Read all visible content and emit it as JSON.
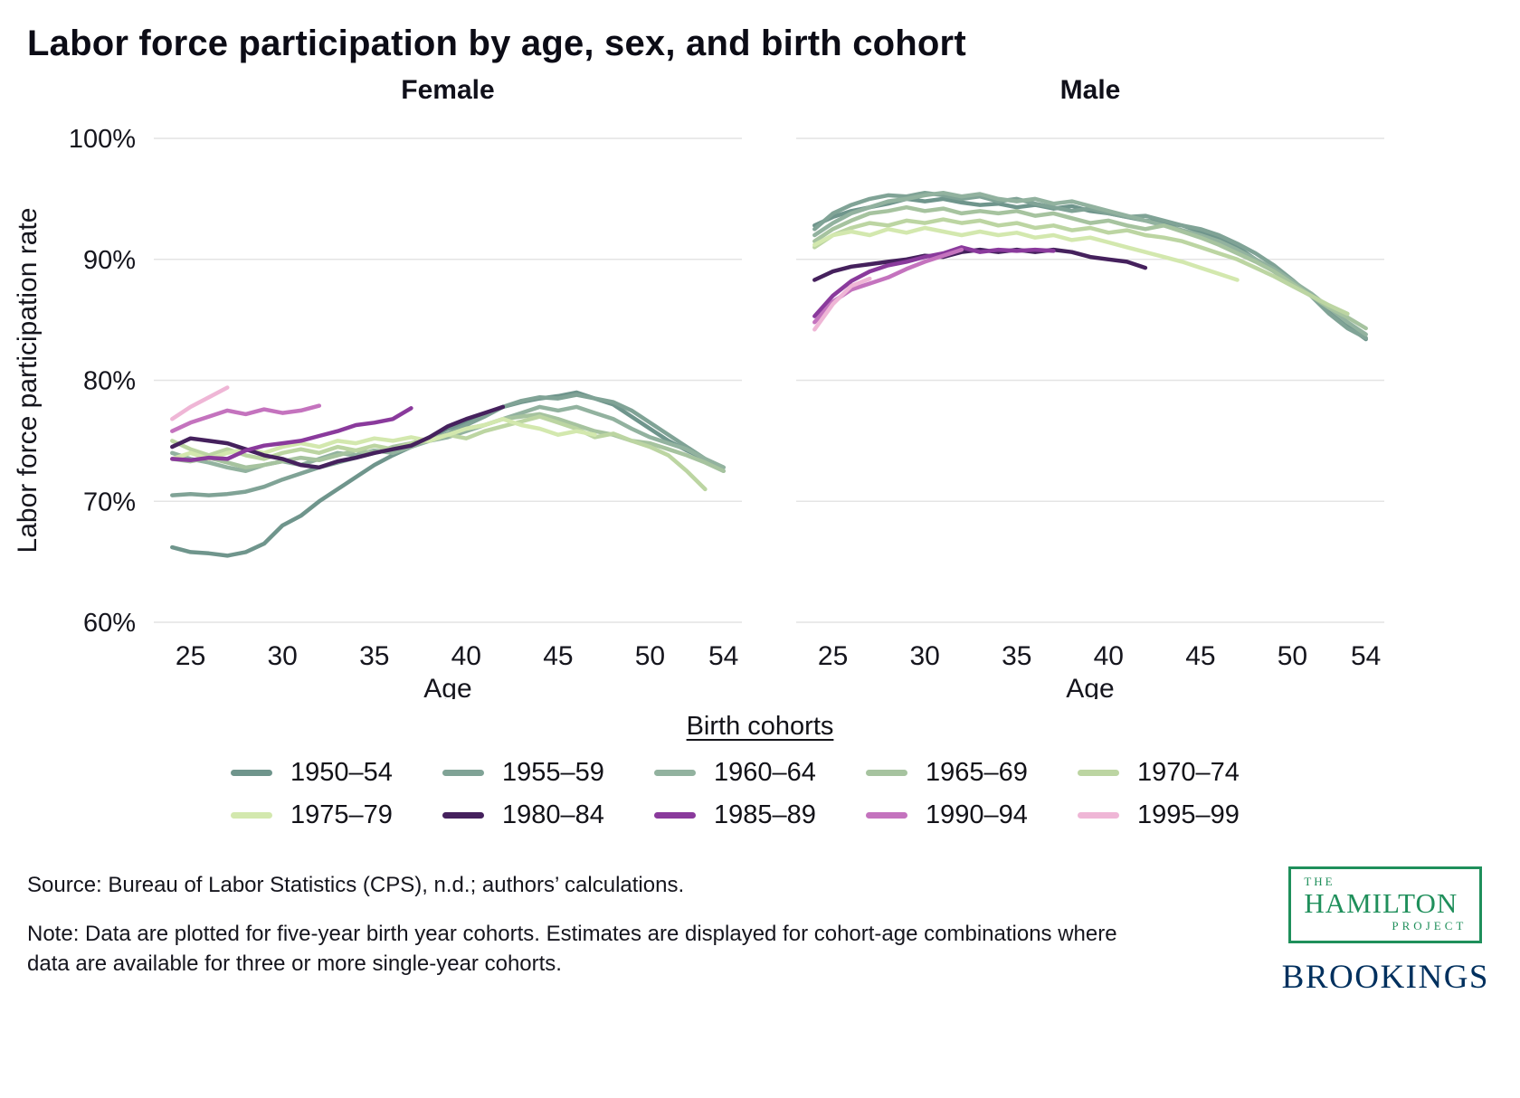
{
  "title": "Labor force participation by age, sex, and birth cohort",
  "y_axis_title": "Labor force participation rate",
  "x_axis_title": "Age",
  "panels": [
    {
      "key": "female",
      "label": "Female"
    },
    {
      "key": "male",
      "label": "Male"
    }
  ],
  "legend_title": "Birth cohorts",
  "source": "Source: Bureau of Labor Statistics (CPS), n.d.; authors’ calculations.",
  "note": "Note: Data are plotted for five-year birth year cohorts. Estimates are displayed for cohort-age combinations where data are available for three or more single-year cohorts.",
  "logos": {
    "hamilton": {
      "the": "THE",
      "name": "HAMILTON",
      "project": "PROJECT"
    },
    "brookings": "BROOKINGS"
  },
  "chart_data": {
    "type": "line",
    "grid": true,
    "legend_position": "bottom",
    "x_range": [
      23,
      55
    ],
    "y_range": [
      58,
      101
    ],
    "x_ticks": [
      25,
      30,
      35,
      40,
      45,
      50,
      54
    ],
    "y_ticks": [
      60,
      70,
      80,
      90,
      100
    ],
    "y_tick_labels": [
      "60%",
      "70%",
      "80%",
      "90%",
      "100%"
    ],
    "grid_color": "#e4e4e4",
    "series": [
      {
        "label": "1950–54",
        "color": "#6f958c",
        "female": {
          "start_age": 24,
          "values": [
            66.2,
            65.8,
            65.7,
            65.5,
            65.8,
            66.5,
            68.0,
            68.8,
            70.0,
            71.0,
            72.0,
            73.0,
            73.8,
            74.5,
            75.3,
            76.0,
            76.5,
            77.2,
            77.8,
            78.2,
            78.5,
            78.7,
            79.0,
            78.5,
            78.0,
            77.0,
            76.0,
            75.0,
            74.2,
            73.5,
            72.8
          ]
        },
        "male": {
          "start_age": 24,
          "values": [
            92.8,
            93.5,
            94.0,
            94.3,
            94.6,
            95.0,
            94.8,
            95.0,
            94.7,
            94.5,
            94.6,
            94.3,
            94.5,
            94.2,
            94.4,
            94.0,
            93.8,
            93.5,
            93.2,
            93.0,
            92.8,
            92.3,
            91.8,
            91.0,
            90.0,
            89.0,
            88.0,
            87.0,
            85.8,
            84.5,
            83.4
          ]
        }
      },
      {
        "label": "1955–59",
        "color": "#80a396",
        "female": {
          "start_age": 24,
          "values": [
            70.5,
            70.6,
            70.5,
            70.6,
            70.8,
            71.2,
            71.8,
            72.3,
            72.8,
            73.2,
            73.6,
            74.0,
            74.3,
            74.6,
            75.0,
            75.6,
            76.3,
            77.0,
            77.8,
            78.3,
            78.6,
            78.5,
            78.8,
            78.5,
            78.2,
            77.5,
            76.5,
            75.5,
            74.5,
            73.5,
            72.5
          ]
        },
        "male": {
          "start_age": 24,
          "values": [
            92.5,
            93.8,
            94.5,
            95.0,
            95.3,
            95.2,
            95.5,
            95.3,
            95.0,
            95.2,
            94.8,
            95.0,
            94.6,
            94.3,
            94.0,
            94.2,
            93.8,
            93.5,
            93.6,
            93.2,
            92.8,
            92.5,
            92.0,
            91.3,
            90.5,
            89.5,
            88.3,
            87.0,
            85.5,
            84.3,
            83.5
          ]
        }
      },
      {
        "label": "1960–64",
        "color": "#92b29f",
        "female": {
          "start_age": 24,
          "values": [
            74.0,
            73.5,
            73.2,
            72.8,
            72.5,
            73.0,
            73.3,
            73.0,
            73.5,
            74.0,
            73.8,
            74.2,
            74.0,
            74.5,
            75.0,
            75.3,
            75.8,
            76.3,
            76.8,
            77.3,
            77.8,
            77.5,
            77.8,
            77.3,
            76.8,
            76.0,
            75.3,
            74.8,
            74.3,
            73.5,
            72.8
          ]
        },
        "male": {
          "start_age": 24,
          "values": [
            92.0,
            93.0,
            93.8,
            94.3,
            94.8,
            95.0,
            95.3,
            95.5,
            95.2,
            95.4,
            95.0,
            94.8,
            95.0,
            94.6,
            94.8,
            94.4,
            94.0,
            93.6,
            93.2,
            92.8,
            92.4,
            92.0,
            91.5,
            90.8,
            90.0,
            89.2,
            88.2,
            87.2,
            86.0,
            84.8,
            83.8
          ]
        }
      },
      {
        "label": "1965–69",
        "color": "#a6c39f",
        "female": {
          "start_age": 24,
          "values": [
            73.5,
            73.3,
            73.6,
            73.2,
            72.8,
            73.0,
            73.3,
            73.6,
            73.4,
            73.8,
            74.2,
            74.0,
            74.5,
            74.8,
            75.2,
            75.5,
            76.0,
            76.3,
            76.8,
            77.0,
            77.2,
            76.8,
            76.3,
            75.8,
            75.5,
            75.0,
            74.8,
            74.3,
            73.8,
            73.2,
            72.5
          ]
        },
        "male": {
          "start_age": 24,
          "values": [
            91.5,
            92.5,
            93.2,
            93.8,
            94.0,
            94.3,
            94.0,
            94.2,
            93.8,
            94.0,
            93.8,
            94.0,
            93.6,
            93.8,
            93.4,
            93.0,
            93.2,
            92.8,
            92.5,
            92.8,
            92.3,
            91.8,
            91.2,
            90.5,
            89.8,
            89.0,
            88.0,
            87.0,
            86.0,
            85.2,
            84.3
          ]
        }
      },
      {
        "label": "1970–74",
        "color": "#bcd5a2",
        "female": {
          "start_age": 24,
          "values": [
            75.0,
            74.3,
            73.8,
            74.3,
            73.8,
            73.5,
            74.0,
            74.3,
            74.0,
            74.5,
            74.2,
            74.6,
            74.3,
            74.8,
            75.0,
            75.5,
            75.2,
            75.8,
            76.2,
            76.6,
            77.0,
            76.5,
            76.0,
            75.3,
            75.6,
            75.0,
            74.5,
            73.8,
            72.5,
            71.0
          ]
        },
        "male": {
          "start_age": 24,
          "values": [
            91.0,
            92.0,
            92.6,
            93.0,
            92.8,
            93.2,
            93.0,
            93.3,
            93.0,
            93.2,
            92.8,
            93.0,
            92.6,
            92.8,
            92.4,
            92.6,
            92.2,
            92.4,
            92.0,
            91.8,
            91.5,
            91.0,
            90.5,
            90.0,
            89.3,
            88.6,
            87.8,
            87.0,
            86.2,
            85.5
          ]
        }
      },
      {
        "label": "1975–79",
        "color": "#d3e8ae",
        "female": {
          "start_age": 24,
          "values": [
            73.5,
            74.0,
            73.5,
            74.0,
            74.3,
            74.0,
            74.5,
            74.8,
            74.5,
            75.0,
            74.8,
            75.2,
            75.0,
            75.3,
            75.0,
            75.5,
            76.0,
            76.3,
            76.8,
            76.3,
            76.0,
            75.5,
            75.8,
            75.5
          ]
        },
        "male": {
          "start_age": 24,
          "values": [
            91.2,
            92.0,
            92.3,
            92.0,
            92.5,
            92.2,
            92.6,
            92.3,
            92.0,
            92.3,
            92.0,
            92.2,
            91.8,
            92.0,
            91.6,
            91.8,
            91.4,
            91.0,
            90.6,
            90.2,
            89.8,
            89.3,
            88.8,
            88.3
          ]
        }
      },
      {
        "label": "1980–84",
        "color": "#45215d",
        "female": {
          "start_age": 24,
          "values": [
            74.5,
            75.2,
            75.0,
            74.8,
            74.3,
            73.8,
            73.5,
            73.0,
            72.8,
            73.3,
            73.6,
            74.0,
            74.3,
            74.6,
            75.3,
            76.2,
            76.8,
            77.3,
            77.8
          ]
        },
        "male": {
          "start_age": 24,
          "values": [
            88.3,
            89.0,
            89.4,
            89.6,
            89.8,
            90.0,
            90.3,
            90.2,
            90.6,
            90.8,
            90.6,
            90.8,
            90.6,
            90.8,
            90.6,
            90.2,
            90.0,
            89.8,
            89.3
          ]
        }
      },
      {
        "label": "1985–89",
        "color": "#8a3a9c",
        "female": {
          "start_age": 24,
          "values": [
            73.5,
            73.4,
            73.6,
            73.5,
            74.2,
            74.6,
            74.8,
            75.0,
            75.4,
            75.8,
            76.3,
            76.5,
            76.8,
            77.7
          ]
        },
        "male": {
          "start_age": 24,
          "values": [
            85.3,
            87.0,
            88.2,
            89.0,
            89.5,
            89.8,
            90.2,
            90.5,
            91.0,
            90.6,
            90.8,
            90.7,
            90.8,
            90.7
          ]
        }
      },
      {
        "label": "1990–94",
        "color": "#c473be",
        "female": {
          "start_age": 24,
          "values": [
            75.8,
            76.5,
            77.0,
            77.5,
            77.2,
            77.6,
            77.3,
            77.5,
            77.9
          ]
        },
        "male": {
          "start_age": 24,
          "values": [
            84.8,
            86.5,
            87.5,
            88.0,
            88.5,
            89.2,
            89.8,
            90.3,
            90.8
          ]
        }
      },
      {
        "label": "1995–99",
        "color": "#efb6d6",
        "female": {
          "start_age": 24,
          "values": [
            76.8,
            77.8,
            78.6,
            79.4
          ]
        },
        "male": {
          "start_age": 24,
          "values": [
            84.2,
            86.3,
            87.8,
            88.4
          ]
        }
      }
    ]
  }
}
